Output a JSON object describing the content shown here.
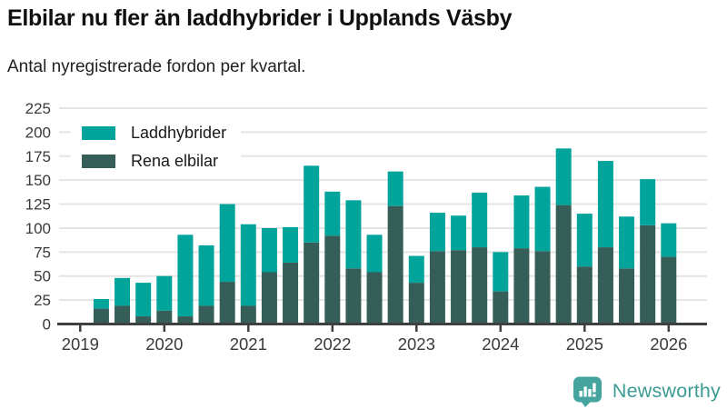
{
  "header": {
    "title": "Elbilar nu fler än laddhybrider i Upplands Väsby",
    "subtitle": "Antal nyregistrerade fordon per kvartal."
  },
  "legend": [
    {
      "label": "Laddhybrider",
      "color": "#00a49a"
    },
    {
      "label": "Rena elbilar",
      "color": "#355e58"
    }
  ],
  "chart_data": {
    "type": "bar",
    "stacked": true,
    "title": "Elbilar nu fler än laddhybrider i Upplands Väsby",
    "subtitle": "Antal nyregistrerade fordon per kvartal.",
    "xlabel": "",
    "ylabel": "",
    "grid": "horizontal",
    "legend_position": "top-left",
    "ylim": [
      0,
      225
    ],
    "yticks": [
      0,
      25,
      50,
      75,
      100,
      125,
      150,
      175,
      200,
      225
    ],
    "xticks": [
      "2019",
      "2020",
      "2021",
      "2022",
      "2023",
      "2024",
      "2025",
      "2026"
    ],
    "categories": [
      "2019 Q2",
      "2019 Q3",
      "2019 Q4",
      "2020 Q1",
      "2020 Q2",
      "2020 Q3",
      "2020 Q4",
      "2021 Q1",
      "2021 Q2",
      "2021 Q3",
      "2021 Q4",
      "2022 Q1",
      "2022 Q2",
      "2022 Q3",
      "2022 Q4",
      "2023 Q1",
      "2023 Q2",
      "2023 Q3",
      "2023 Q4",
      "2024 Q1",
      "2024 Q2",
      "2024 Q3",
      "2024 Q4",
      "2025 Q1",
      "2025 Q2",
      "2025 Q3",
      "2025 Q4",
      "2026 Q1"
    ],
    "series": [
      {
        "name": "Rena elbilar",
        "color": "#355e58",
        "values": [
          16,
          19,
          8,
          14,
          8,
          19,
          44,
          19,
          54,
          64,
          85,
          92,
          58,
          54,
          123,
          43,
          76,
          77,
          80,
          34,
          79,
          76,
          124,
          60,
          80,
          58,
          103,
          70
        ]
      },
      {
        "name": "Laddhybrider",
        "color": "#00a49a",
        "values": [
          10,
          29,
          35,
          36,
          85,
          63,
          81,
          85,
          46,
          37,
          80,
          46,
          71,
          39,
          36,
          28,
          40,
          36,
          57,
          41,
          55,
          67,
          59,
          55,
          90,
          54,
          48,
          35
        ]
      }
    ]
  },
  "axis_colors": {
    "grid": "#e4e4e4",
    "axis": "#3c403f",
    "tick_label": "#3a3a3a"
  },
  "footer": {
    "brand": "Newsworthy",
    "brand_color": "#3d9b94"
  }
}
